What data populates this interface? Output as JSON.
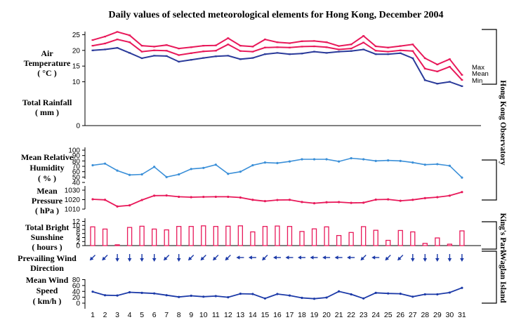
{
  "chart_data": {
    "type": "line",
    "title": "Daily values of selected meteorological elements for Hong Kong, December 2004",
    "x": [
      1,
      2,
      3,
      4,
      5,
      6,
      7,
      8,
      9,
      10,
      11,
      12,
      13,
      14,
      15,
      16,
      17,
      18,
      19,
      20,
      21,
      22,
      23,
      24,
      25,
      26,
      27,
      28,
      29,
      30,
      31
    ],
    "panels": {
      "temperature": {
        "label_lines": [
          "Air",
          "Temperature",
          "( °C )"
        ],
        "yticks": [
          10,
          15,
          20,
          25
        ],
        "ylim": [
          8,
          27
        ],
        "series": [
          {
            "name": "Max",
            "color": "#e8195a",
            "values": [
              23.3,
              24.4,
              25.9,
              24.8,
              21.5,
              21.2,
              21.7,
              20.6,
              21.0,
              21.5,
              21.6,
              23.9,
              21.5,
              21.2,
              23.5,
              22.6,
              22.3,
              22.9,
              23.0,
              22.6,
              21.4,
              21.9,
              24.6,
              21.3,
              20.9,
              21.4,
              21.9,
              17.5,
              15.5,
              17.2,
              12.2
            ]
          },
          {
            "name": "Mean",
            "color": "#e8195a",
            "values": [
              21.5,
              22.2,
              23.5,
              22.6,
              19.6,
              20.0,
              19.9,
              18.5,
              19.1,
              19.7,
              19.9,
              21.9,
              19.8,
              19.6,
              20.9,
              21.0,
              20.9,
              21.2,
              21.3,
              21.0,
              20.3,
              20.6,
              22.5,
              19.9,
              19.6,
              20.0,
              19.8,
              14.2,
              13.3,
              14.8,
              10.6
            ]
          },
          {
            "name": "Min",
            "color": "#2a3a9a",
            "values": [
              20.0,
              20.3,
              20.8,
              19.2,
              17.5,
              18.3,
              18.2,
              16.4,
              17.0,
              17.6,
              18.1,
              18.3,
              17.2,
              17.6,
              18.8,
              19.2,
              18.8,
              19.0,
              19.6,
              19.2,
              19.6,
              19.8,
              20.3,
              18.8,
              18.8,
              19.1,
              17.5,
              10.5,
              9.4,
              10.0,
              8.6
            ]
          }
        ]
      },
      "rainfall": {
        "label_lines": [
          "Total Rainfall",
          "( mm )"
        ],
        "yticks": [
          0
        ],
        "values": [
          0,
          0,
          0,
          0,
          0,
          0,
          0,
          0,
          0,
          0,
          0,
          0,
          0,
          0,
          0,
          0,
          0,
          0,
          0,
          0,
          0,
          0,
          0,
          0,
          0,
          0,
          0,
          0,
          0,
          0,
          0
        ]
      },
      "humidity": {
        "label_lines": [
          "Mean Relative",
          "Humidity",
          "( % )"
        ],
        "yticks": [
          40,
          50,
          60,
          70,
          80,
          90,
          100
        ],
        "ylim": [
          40,
          100
        ],
        "color": "#3a8fd8",
        "values": [
          72,
          75,
          62,
          54,
          55,
          69,
          50,
          55,
          65,
          67,
          73,
          56,
          60,
          72,
          77,
          76,
          79,
          83,
          83,
          83,
          79,
          85,
          83,
          80,
          81,
          80,
          77,
          73,
          74,
          71,
          49
        ]
      },
      "pressure": {
        "label_lines": [
          "Mean",
          "Pressure",
          "( hPa )"
        ],
        "yticks": [
          1010,
          1020,
          1030
        ],
        "ylim": [
          1010,
          1030
        ],
        "color": "#e8195a",
        "values": [
          1020.4,
          1019.8,
          1012.8,
          1014.0,
          1019.6,
          1024.2,
          1024.4,
          1023.0,
          1022.6,
          1022.9,
          1023.0,
          1023.0,
          1022.2,
          1019.8,
          1018.4,
          1019.6,
          1019.8,
          1017.5,
          1016.2,
          1017.2,
          1017.4,
          1016.6,
          1016.8,
          1020.0,
          1020.3,
          1018.8,
          1019.8,
          1021.6,
          1022.6,
          1024.2,
          1028.0
        ]
      },
      "sunshine": {
        "label_lines": [
          "Total Bright",
          "Sunshine",
          "( hours )"
        ],
        "yticks": [
          0,
          2,
          4,
          6,
          8,
          10,
          12
        ],
        "ylim": [
          0,
          12
        ],
        "color": "#e8195a",
        "values": [
          9.3,
          8.2,
          0.4,
          9.0,
          9.6,
          8.2,
          7.8,
          9.5,
          9.5,
          9.8,
          9.5,
          9.6,
          9.8,
          6.8,
          9.5,
          9.7,
          9.5,
          7.0,
          8.3,
          9.3,
          5.0,
          6.5,
          9.4,
          7.6,
          2.6,
          7.5,
          6.8,
          1.1,
          3.8,
          0.7,
          7.3
        ]
      },
      "wind_direction": {
        "label_lines": [
          "Prevailing Wind",
          "Direction"
        ],
        "color": "#1c3aa8",
        "values": [
          "NE",
          "NE",
          "N",
          "N",
          "N",
          "N",
          "NE",
          "N",
          "NE",
          "NE",
          "NE",
          "NE",
          "E",
          "E",
          "NE",
          "E",
          "E",
          "E",
          "E",
          "E",
          "E",
          "E",
          "NE",
          "E",
          "NE",
          "NE",
          "N",
          "N",
          "N",
          "N",
          "N"
        ]
      },
      "wind_speed": {
        "label_lines": [
          "Mean Wind",
          "Speed",
          "( km/h )"
        ],
        "yticks": [
          0,
          20,
          40,
          60,
          80
        ],
        "ylim": [
          0,
          80
        ],
        "color": "#1c3aa8",
        "values": [
          39,
          27,
          26,
          37,
          35,
          33,
          27,
          21,
          25,
          22,
          24,
          20,
          32,
          31,
          16,
          31,
          26,
          18,
          15,
          19,
          40,
          30,
          16,
          35,
          33,
          32,
          22,
          30,
          30,
          36,
          52
        ]
      }
    },
    "side_labels": {
      "hko": "Hong Kong Observatory",
      "kings_park": "King's Park",
      "waglan": "Waglan Island"
    }
  }
}
